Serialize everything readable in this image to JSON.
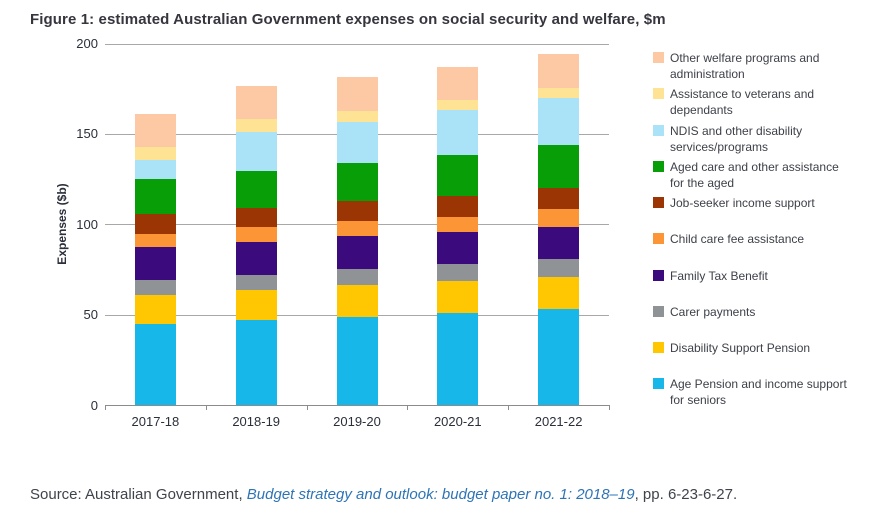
{
  "figure": {
    "title": "Figure 1: estimated Australian Government expenses on social security and welfare, $m"
  },
  "chart_data": {
    "type": "bar",
    "stacked": true,
    "orientation": "vertical",
    "title": "Figure 1: estimated Australian Government expenses on social security and welfare, $m",
    "xlabel": "",
    "ylabel": "Expenses ($b)",
    "ylim": [
      0,
      200
    ],
    "yticks": [
      0,
      50,
      100,
      150,
      200
    ],
    "grid": true,
    "legend_position": "right",
    "categories": [
      "2017-18",
      "2018-19",
      "2019-20",
      "2020-21",
      "2021-22"
    ],
    "series": [
      {
        "name": "Age Pension and income support for seniors",
        "color": "#17B7EA",
        "values": [
          45,
          47,
          49,
          51,
          53.5
        ]
      },
      {
        "name": "Disability Support Pension",
        "color": "#FFC701",
        "values": [
          16,
          17,
          17.5,
          18,
          17.5
        ]
      },
      {
        "name": "Carer payments",
        "color": "#909396",
        "values": [
          8.5,
          8,
          9,
          9,
          10
        ]
      },
      {
        "name": "Family Tax Benefit",
        "color": "#3B0A7D",
        "values": [
          18,
          18.5,
          18,
          18,
          18
        ]
      },
      {
        "name": "Child care fee assistance",
        "color": "#FB9535",
        "values": [
          7.5,
          8,
          8.5,
          8.5,
          9.5
        ]
      },
      {
        "name": "Job-seeker income support",
        "color": "#9B3503",
        "values": [
          11,
          10.5,
          11,
          11.5,
          12
        ]
      },
      {
        "name": "Aged care and other assistance for the aged",
        "color": "#079E07",
        "values": [
          19.5,
          20.5,
          21,
          22.5,
          23.5
        ]
      },
      {
        "name": "NDIS and other disability services/programs",
        "color": "#AAE2F8",
        "values": [
          10.5,
          22,
          23,
          25,
          26
        ]
      },
      {
        "name": "Assistance to veterans and dependants",
        "color": "#FFE394",
        "values": [
          7,
          7,
          6,
          5.5,
          5.5
        ]
      },
      {
        "name": "Other welfare programs and administration",
        "color": "#FDC9A5",
        "values": [
          18,
          18.5,
          19,
          18.5,
          19
        ]
      }
    ],
    "stack_order": "first series listed is at the bottom of each bar",
    "legend_order_top_to_bottom": [
      "Other welfare programs and administration",
      "Assistance to veterans and dependants",
      "NDIS and other disability services/programs",
      "Aged care and other assistance for the aged",
      "Job-seeker income support",
      "Child care fee assistance",
      "Family Tax Benefit",
      "Carer payments",
      "Disability Support Pension",
      "Age Pension and income support for seniors"
    ],
    "totals": [
      161,
      177,
      182,
      187.5,
      194.5
    ]
  },
  "source": {
    "prefix": "Source: Australian Government, ",
    "link_text": "Budget strategy and outlook: budget paper no. 1: 2018–19",
    "suffix": ", pp. 6-23-6-27.",
    "link_color": "#2E74B5"
  }
}
